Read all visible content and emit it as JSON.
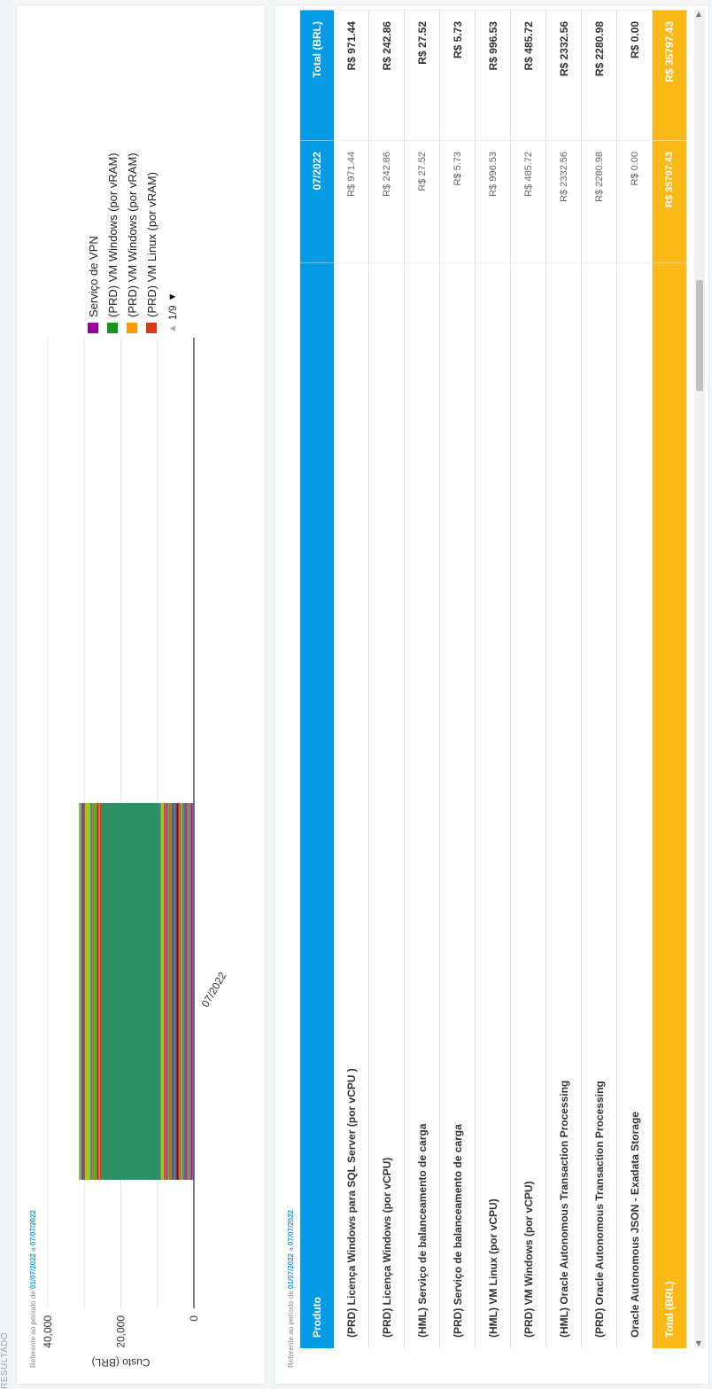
{
  "section_label": "RESULTADO",
  "period": {
    "prefix": "Referente ao período de",
    "start": "01/07/2022",
    "mid": "a",
    "end": "07/07/2022"
  },
  "chart_data": {
    "type": "bar",
    "orientation": "vertical",
    "stacked": true,
    "categories": [
      "07/2022"
    ],
    "ylabel": "Custo (BRL)",
    "ylim": [
      0,
      40000
    ],
    "yticks": [
      "0",
      "20,000",
      "40,000"
    ],
    "grid": true,
    "legend_position": "right",
    "series": [
      {
        "name": "Serviço de VPN",
        "color": "#990099"
      },
      {
        "name": "(PRD) VM Windows (por vRAM)",
        "color": "#109618"
      },
      {
        "name": "(PRD) VM Windows (por vRAM)",
        "color": "#ff9900"
      },
      {
        "name": "(PRD) VM Linux (por vRAM)",
        "color": "#dc3912"
      }
    ],
    "segments": [
      {
        "value": 300,
        "color": "#3366cc"
      },
      {
        "value": 200,
        "color": "#dc3912"
      },
      {
        "value": 250,
        "color": "#990099"
      },
      {
        "value": 300,
        "color": "#0099c6"
      },
      {
        "value": 450,
        "color": "#dd4477"
      },
      {
        "value": 250,
        "color": "#66aa00"
      },
      {
        "value": 350,
        "color": "#b82e2e"
      },
      {
        "value": 300,
        "color": "#316395"
      },
      {
        "value": 400,
        "color": "#994499"
      },
      {
        "value": 350,
        "color": "#22aa99"
      },
      {
        "value": 500,
        "color": "#aaaa11"
      },
      {
        "value": 200,
        "color": "#6633cc"
      },
      {
        "value": 350,
        "color": "#e67300"
      },
      {
        "value": 450,
        "color": "#8b0707"
      },
      {
        "value": 300,
        "color": "#651067"
      },
      {
        "value": 400,
        "color": "#329262"
      },
      {
        "value": 250,
        "color": "#5574a6"
      },
      {
        "value": 350,
        "color": "#3b3eac"
      },
      {
        "value": 500,
        "color": "#b77322"
      },
      {
        "value": 300,
        "color": "#dc3912"
      },
      {
        "value": 450,
        "color": "#16d620"
      },
      {
        "value": 300,
        "color": "#b91383"
      },
      {
        "value": 400,
        "color": "#f4359e"
      },
      {
        "value": 350,
        "color": "#9c5935"
      },
      {
        "value": 800,
        "color": "#a9c413"
      },
      {
        "value": 300,
        "color": "#2a778d"
      },
      {
        "value": 16000,
        "color": "#2e9066"
      },
      {
        "value": 450,
        "color": "#dc3912"
      },
      {
        "value": 300,
        "color": "#ff9900"
      },
      {
        "value": 400,
        "color": "#990099"
      },
      {
        "value": 1200,
        "color": "#66aa00"
      },
      {
        "value": 300,
        "color": "#dd4477"
      },
      {
        "value": 350,
        "color": "#0099c6"
      },
      {
        "value": 1500,
        "color": "#a9c413"
      },
      {
        "value": 300,
        "color": "#b82e2e"
      },
      {
        "value": 400,
        "color": "#316395"
      },
      {
        "value": 300,
        "color": "#994499"
      },
      {
        "value": 600,
        "color": "#76b043"
      }
    ]
  },
  "legend_nav": {
    "page": "1/9"
  },
  "table": {
    "headers": {
      "product": "Produto",
      "month": "07/2022",
      "total": "Total (BRL)"
    },
    "rows": [
      {
        "name": "(PRD) Licença Windows para SQL Server (por vCPU )",
        "month": "R$ 971.44",
        "total": "R$ 971.44"
      },
      {
        "name": "(PRD) Licença Windows (por vCPU)",
        "month": "R$ 242.86",
        "total": "R$ 242.86"
      },
      {
        "name": "(HML) Serviço de balanceamento de carga",
        "month": "R$ 27.52",
        "total": "R$ 27.52"
      },
      {
        "name": "(PRD) Serviço de balanceamento de carga",
        "month": "R$ 5.73",
        "total": "R$ 5.73"
      },
      {
        "name": "(HML) VM Linux (por vCPU)",
        "month": "R$ 996.53",
        "total": "R$ 996.53"
      },
      {
        "name": "(PRD) VM Windows (por vCPU)",
        "month": "R$ 485.72",
        "total": "R$ 485.72"
      },
      {
        "name": "(HML) Oracle Autonomous Transaction Processing",
        "month": "R$ 2332.56",
        "total": "R$ 2332.56"
      },
      {
        "name": "(PRD) Oracle Autonomous Transaction Processing",
        "month": "R$ 2280.98",
        "total": "R$ 2280.98"
      },
      {
        "name": "Oracle Autonomous JSON - Exadata Storage",
        "month": "R$ 0.00",
        "total": "R$ 0.00"
      }
    ],
    "footer": {
      "label": "Total (BRL)",
      "month": "R$ 35797.43",
      "total": "R$ 35797.43"
    }
  }
}
